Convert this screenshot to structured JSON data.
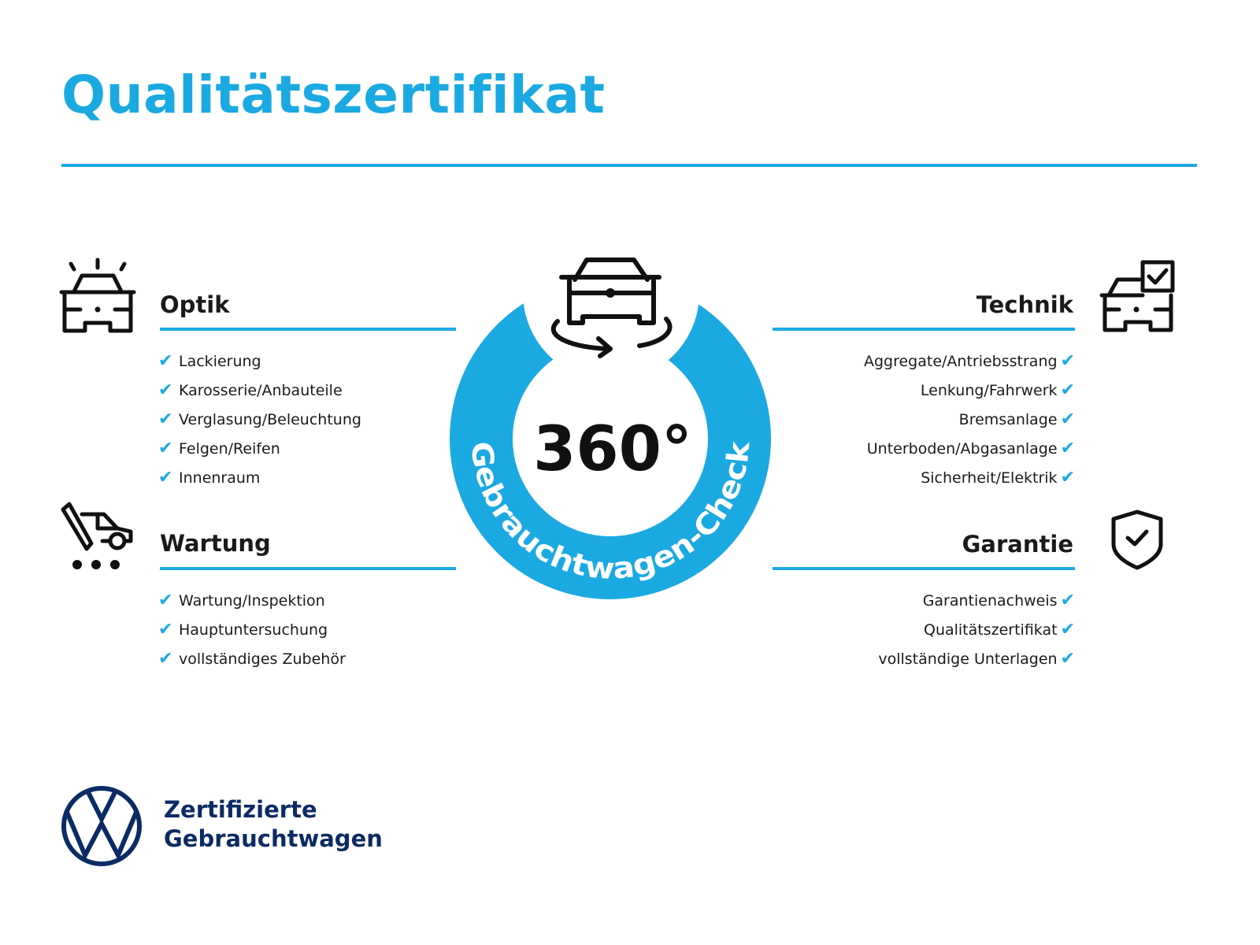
{
  "title": "Qualitätszertifikat",
  "colors": {
    "accent": "#1ba9e1",
    "brand_navy": "#0b2b64",
    "text": "#1a1a1a"
  },
  "center": {
    "big": "360°",
    "ring_text": "Gebrauchtwagen-Check",
    "icon": "car-rotate-icon"
  },
  "check_symbol": "✔",
  "sections": {
    "optik": {
      "heading": "Optik",
      "icon": "car-shine-icon",
      "items": [
        "Lackierung",
        "Karosserie/Anbauteile",
        "Verglasung/Beleuchtung",
        "Felgen/Reifen",
        "Innenraum"
      ]
    },
    "wartung": {
      "heading": "Wartung",
      "icon": "service-truck-icon",
      "items": [
        "Wartung/Inspektion",
        "Hauptuntersuchung",
        "vollständiges Zubehör"
      ]
    },
    "technik": {
      "heading": "Technik",
      "icon": "car-checkbox-icon",
      "items": [
        "Aggregate/Antriebsstrang",
        "Lenkung/Fahrwerk",
        "Bremsanlage",
        "Unterboden/Abgasanlage",
        "Sicherheit/Elektrik"
      ]
    },
    "garantie": {
      "heading": "Garantie",
      "icon": "shield-check-icon",
      "items": [
        "Garantienachweis",
        "Qualitätszertifikat",
        "vollständige Unterlagen"
      ]
    }
  },
  "brand": {
    "line1": "Zertifizierte",
    "line2": "Gebrauchtwagen",
    "logo": "vw-logo"
  }
}
